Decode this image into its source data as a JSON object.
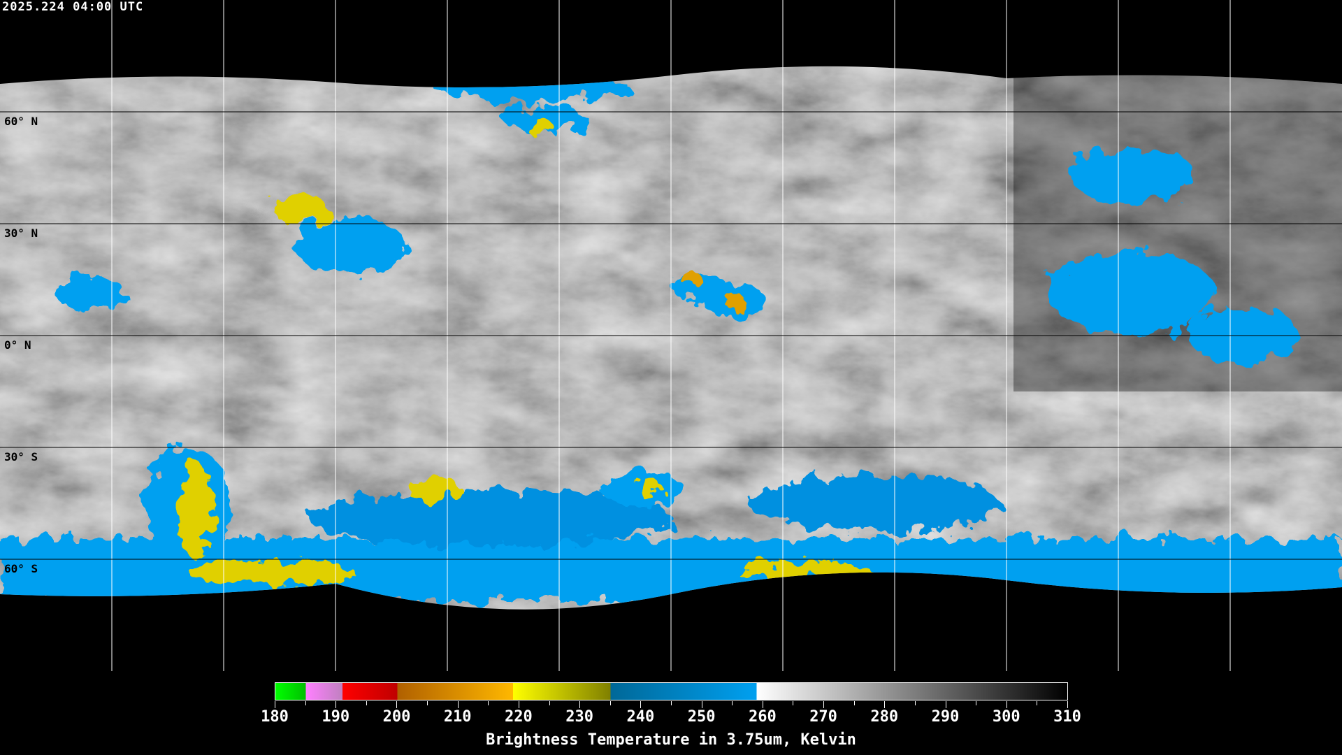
{
  "header": {
    "timestamp": "2025.224 04:00 UTC"
  },
  "map": {
    "projection": "equirectangular",
    "grid_spacing_degrees": 30,
    "lat_labels": [
      "60° N",
      "30° N",
      "0° N",
      "30° S",
      "60° S"
    ],
    "colors": {
      "background": "#000000",
      "grid": "#ffffff",
      "coastline_over_image": "#000000",
      "coastline_over_background": "#ffffff"
    }
  },
  "colorbar": {
    "title": "Brightness Temperature in 3.75um, Kelvin",
    "range": [
      180,
      310
    ],
    "tick_labels": [
      "180",
      "190",
      "200",
      "210",
      "220",
      "230",
      "240",
      "250",
      "260",
      "270",
      "280",
      "290",
      "300",
      "310"
    ],
    "segments": [
      {
        "from": 180,
        "to": 185,
        "start": "#00ff00",
        "end": "#00c000"
      },
      {
        "from": 185,
        "to": 191,
        "start": "#ff80ff",
        "end": "#c080c0"
      },
      {
        "from": 191,
        "to": 200,
        "start": "#ff0000",
        "end": "#c00000"
      },
      {
        "from": 200,
        "to": 219,
        "start": "#b06000",
        "end": "#ffb800"
      },
      {
        "from": 219,
        "to": 235,
        "start": "#ffff00",
        "end": "#808000"
      },
      {
        "from": 235,
        "to": 259,
        "start": "#006898",
        "end": "#00a0f0"
      },
      {
        "from": 259,
        "to": 310,
        "start": "#ffffff",
        "end": "#000000"
      }
    ]
  }
}
